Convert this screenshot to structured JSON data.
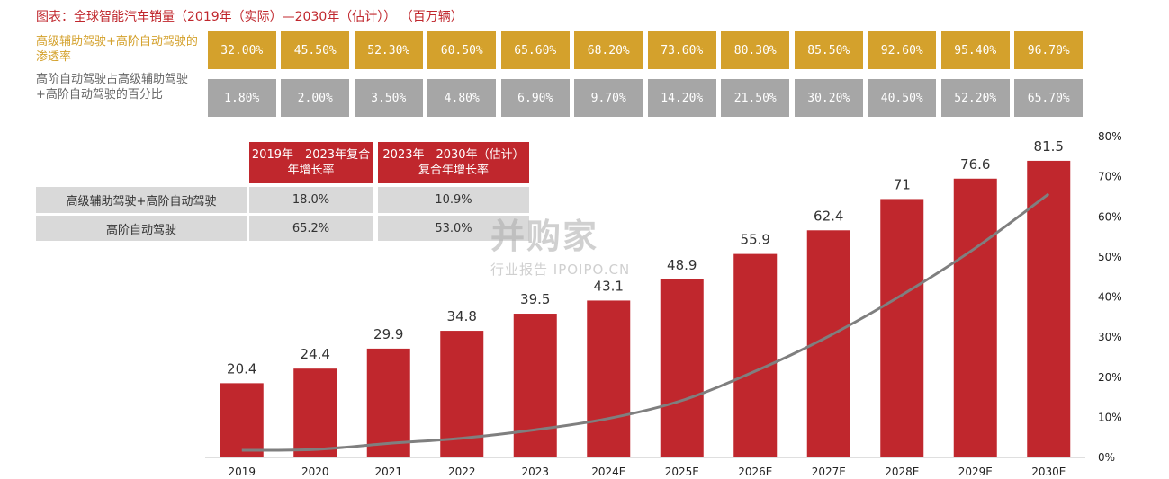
{
  "title": "图表：全球智能汽车销量（2019年（实际）—2030年（估计））  （百万辆）",
  "rows": {
    "penetration_label": "高级辅助驾驶+高阶自动驾驶的渗透率",
    "penetration_values": [
      "32.00%",
      "45.50%",
      "52.30%",
      "60.50%",
      "65.60%",
      "68.20%",
      "73.60%",
      "80.30%",
      "85.50%",
      "92.60%",
      "95.40%",
      "96.70%"
    ],
    "high_share_label": "高阶自动驾驶占高级辅助驾驶+高阶自动驾驶的百分比",
    "high_share_values": [
      "1.80%",
      "2.00%",
      "3.50%",
      "4.80%",
      "6.90%",
      "9.70%",
      "14.20%",
      "21.50%",
      "30.20%",
      "40.50%",
      "52.20%",
      "65.70%"
    ]
  },
  "cagr_table": {
    "header_1": "2019年—2023年复合年增长率",
    "header_2": "2023年—2030年（估计）复合年增长率",
    "rows": [
      {
        "label": "高级辅助驾驶+高阶自动驾驶",
        "v1": "18.0%",
        "v2": "10.9%"
      },
      {
        "label": "高阶自动驾驶",
        "v1": "65.2%",
        "v2": "53.0%"
      }
    ]
  },
  "watermark": {
    "line1": "并购家",
    "line2": "行业报告 IPOIPO.CN"
  },
  "colors": {
    "bar": "#c0272d",
    "line": "#7f7f7f",
    "gold": "#d4a12c",
    "gray_box": "#a6a6a6"
  },
  "chart_data": {
    "type": "bar",
    "categories": [
      "2019",
      "2020",
      "2021",
      "2022",
      "2023",
      "2024E",
      "2025E",
      "2026E",
      "2027E",
      "2028E",
      "2029E",
      "2030E"
    ],
    "series": [
      {
        "values": [
          20.4,
          24.4,
          29.9,
          34.8,
          39.5,
          43.1,
          48.9,
          55.9,
          62.4,
          71,
          76.6,
          81.5
        ],
        "data_labels": [
          "20.4",
          "24.4",
          "29.9",
          "34.8",
          "39.5",
          "43.1",
          "48.9",
          "55.9",
          "62.4",
          "71",
          "76.6",
          "81.5"
        ]
      },
      {
        "type": "line",
        "axis": "right",
        "values": [
          1.8,
          2.0,
          3.5,
          4.8,
          6.9,
          9.7,
          14.2,
          21.5,
          30.2,
          40.5,
          52.2,
          65.7
        ]
      }
    ],
    "y2_ticks": [
      "0%",
      "10%",
      "20%",
      "30%",
      "40%",
      "50%",
      "60%",
      "70%",
      "80%"
    ],
    "y2lim": [
      0,
      80
    ],
    "ylim": [
      0,
      100
    ]
  }
}
